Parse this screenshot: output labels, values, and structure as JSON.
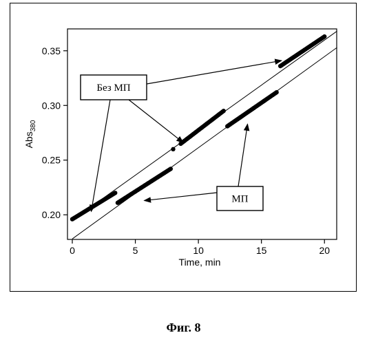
{
  "chart_data": {
    "type": "scatter",
    "xlabel": "Time, min",
    "ylabel_main": "Abs",
    "ylabel_sub": "380",
    "xlim": [
      0,
      21
    ],
    "ylim": [
      0.18,
      0.37
    ],
    "xticks": [
      0,
      5,
      10,
      15,
      20
    ],
    "yticks": [
      0.2,
      0.25,
      0.3,
      0.35
    ],
    "ytick_labels": [
      "0.20",
      "0.25",
      "0.30",
      "0.35"
    ],
    "grid": false,
    "series": [
      {
        "name": "Без МП",
        "segments": [
          {
            "x_start": 0.0,
            "y_start": 0.196,
            "x_end": 3.4,
            "y_end": 0.22
          },
          {
            "x_start": 8.6,
            "y_start": 0.265,
            "x_end": 12.0,
            "y_end": 0.295
          },
          {
            "x_start": 16.5,
            "y_start": 0.336,
            "x_end": 20.0,
            "y_end": 0.363
          }
        ],
        "extra_points": [
          {
            "x": 8.0,
            "y": 0.26
          }
        ],
        "fit_line": {
          "x0": 0.0,
          "y0": 0.195,
          "x1": 21.0,
          "y1": 0.368
        }
      },
      {
        "name": "МП",
        "segments": [
          {
            "x_start": 3.6,
            "y_start": 0.211,
            "x_end": 7.8,
            "y_end": 0.242
          },
          {
            "x_start": 12.3,
            "y_start": 0.281,
            "x_end": 16.2,
            "y_end": 0.312
          }
        ],
        "fit_line": {
          "x0": 0.0,
          "y0": 0.178,
          "x1": 21.0,
          "y1": 0.353
        }
      }
    ],
    "annotations": [
      {
        "label": "Без МП",
        "arrow_targets": [
          {
            "x": 1.5,
            "y": 0.203
          },
          {
            "x": 8.8,
            "y": 0.266
          },
          {
            "x": 16.6,
            "y": 0.341
          }
        ]
      },
      {
        "label": "МП",
        "arrow_targets": [
          {
            "x": 5.7,
            "y": 0.213
          },
          {
            "x": 13.9,
            "y": 0.283
          }
        ]
      }
    ]
  },
  "caption": "Фиг. 8"
}
